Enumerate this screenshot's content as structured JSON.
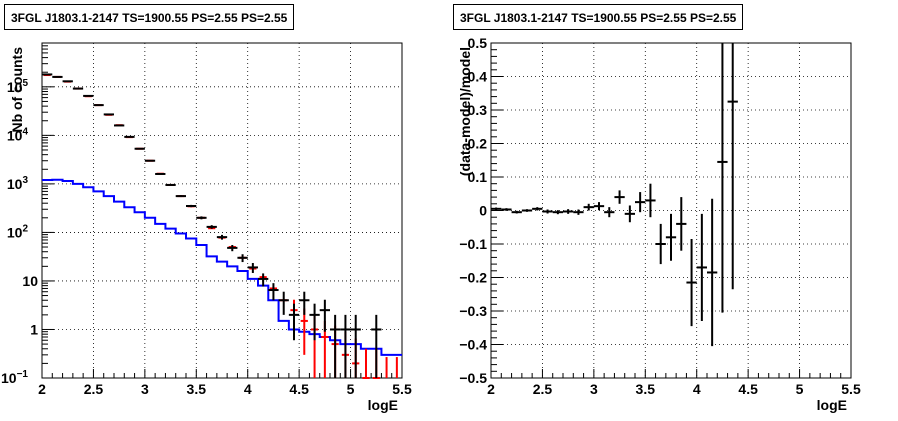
{
  "chart_data": [
    {
      "type": "line",
      "title": "3FGL J1803.1-2147 TS=1900.55 PS=2.55 PS=2.55",
      "xlabel": "logE",
      "ylabel": "Nb of counts",
      "xlim": [
        2,
        5.5
      ],
      "ylim": [
        0.1,
        800000
      ],
      "yscale": "log",
      "grid": true,
      "x_ticks": [
        "2",
        "2.5",
        "3",
        "3.5",
        "4",
        "4.5",
        "5",
        "5.5"
      ],
      "y_ticks": [
        {
          "value": 0.1,
          "label": "10",
          "exp": "−1"
        },
        {
          "value": 1,
          "label": "1",
          "exp": ""
        },
        {
          "value": 10,
          "label": "10",
          "exp": ""
        },
        {
          "value": 100,
          "label": "10",
          "exp": "2"
        },
        {
          "value": 1000,
          "label": "10",
          "exp": "3"
        },
        {
          "value": 10000,
          "label": "10",
          "exp": "4"
        },
        {
          "value": 100000,
          "label": "10",
          "exp": "5"
        }
      ],
      "x": [
        2.05,
        2.15,
        2.25,
        2.35,
        2.45,
        2.55,
        2.65,
        2.75,
        2.85,
        2.95,
        3.05,
        3.15,
        3.25,
        3.35,
        3.45,
        3.55,
        3.65,
        3.75,
        3.85,
        3.95,
        4.05,
        4.15,
        4.25,
        4.35,
        4.45,
        4.55,
        4.65,
        4.75,
        4.85,
        4.95,
        5.05,
        5.15,
        5.25,
        5.35,
        5.45
      ],
      "series": [
        {
          "name": "",
          "role": "data",
          "color": "#000000",
          "values": [
            180000,
            160000,
            130000,
            92000,
            65000,
            42000,
            27000,
            16000,
            9300,
            5300,
            3000,
            1600,
            950,
            560,
            350,
            200,
            130,
            80,
            48,
            30,
            19,
            11,
            6.5,
            4,
            2,
            4,
            2,
            2.5,
            1,
            1,
            1,
            0,
            1,
            0,
            0
          ],
          "err": [
            400,
            400,
            350,
            300,
            250,
            200,
            160,
            130,
            100,
            75,
            55,
            40,
            30,
            24,
            19,
            14,
            11,
            9,
            7,
            5.5,
            4.4,
            3.3,
            2.5,
            2,
            1.4,
            2,
            1.4,
            1.6,
            1,
            1,
            1,
            0,
            1,
            0,
            0
          ]
        },
        {
          "name": "",
          "role": "total model",
          "color": "#ff0000",
          "values": [
            175000,
            160000,
            128000,
            92000,
            64000,
            42000,
            26500,
            16200,
            9200,
            5300,
            3000,
            1620,
            950,
            560,
            345,
            200,
            122,
            78,
            50,
            30,
            18,
            12,
            7,
            4,
            2.5,
            1.5,
            1,
            0.7,
            0.5,
            0.3,
            0.2,
            0.1,
            0.1,
            0.05,
            0.05
          ],
          "err": [
            0,
            0,
            0,
            0,
            0,
            0,
            0,
            0,
            0,
            0,
            0,
            0,
            0,
            0,
            0,
            0,
            0,
            0,
            0,
            0,
            0,
            0,
            0,
            0,
            1.6,
            1.2,
            1.0,
            0.8,
            0.7,
            0.6,
            0.45,
            0.3,
            0.3,
            0.22,
            0.22
          ]
        },
        {
          "name": "",
          "role": "source model",
          "color": "#0000ff",
          "values": [
            1200,
            1220,
            1150,
            1000,
            850,
            700,
            560,
            430,
            330,
            260,
            200,
            150,
            120,
            95,
            75,
            55,
            32,
            25,
            20,
            16,
            11,
            8,
            4,
            1.5,
            1,
            0.9,
            0.8,
            0.7,
            0.6,
            0.5,
            0.5,
            0.4,
            0.4,
            0.3,
            0.3
          ]
        }
      ]
    },
    {
      "type": "scatter",
      "title": "3FGL J1803.1-2147 TS=1900.55 PS=2.55 PS=2.55",
      "xlabel": "logE",
      "ylabel": "(data-model)/model",
      "xlim": [
        2,
        5.5
      ],
      "ylim": [
        -0.5,
        0.5
      ],
      "grid": true,
      "x_ticks": [
        "2",
        "2.5",
        "3",
        "3.5",
        "4",
        "4.5",
        "5",
        "5.5"
      ],
      "y_ticks": [
        "−0.5",
        "−0.4",
        "−0.3",
        "−0.2",
        "−0.1",
        "0",
        "0.1",
        "0.2",
        "0.3",
        "0.4",
        "0.5"
      ],
      "series": [
        {
          "name": "",
          "color": "#000000",
          "x": [
            2.05,
            2.15,
            2.25,
            2.35,
            2.45,
            2.55,
            2.65,
            2.75,
            2.85,
            2.95,
            3.05,
            3.15,
            3.25,
            3.35,
            3.45,
            3.55,
            3.65,
            3.75,
            3.85,
            3.95,
            4.05,
            4.15,
            4.25,
            4.35
          ],
          "y": [
            0.005,
            0.003,
            -0.005,
            0.0,
            0.005,
            -0.003,
            -0.005,
            -0.003,
            -0.005,
            0.01,
            0.013,
            -0.005,
            0.04,
            -0.01,
            0.025,
            0.03,
            -0.1,
            -0.08,
            -0.04,
            -0.215,
            -0.17,
            -0.185,
            0.145,
            0.325
          ],
          "err": [
            0.004,
            0.004,
            0.004,
            0.004,
            0.005,
            0.006,
            0.006,
            0.007,
            0.008,
            0.01,
            0.012,
            0.015,
            0.02,
            0.025,
            0.03,
            0.05,
            0.06,
            0.07,
            0.08,
            0.13,
            0.16,
            0.22,
            0.45,
            0.56
          ]
        }
      ]
    }
  ]
}
